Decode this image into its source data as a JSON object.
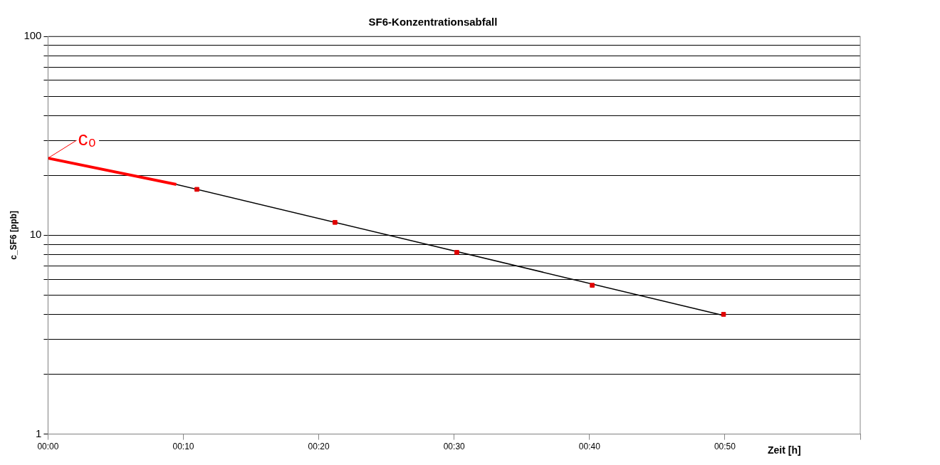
{
  "chart_data": {
    "type": "scatter",
    "title": "SF6-Konzentrationsabfall",
    "xlabel": "Zeit [h]",
    "ylabel": "c_SF6 [ppb]",
    "series": [
      {
        "type": "scatter",
        "color": "#e00000",
        "marker": "square",
        "x": [
          0.1833,
          0.3533,
          0.5033,
          0.67,
          0.8317
        ],
        "values": [
          17,
          11.6,
          8.2,
          5.6,
          4.0
        ]
      },
      {
        "type": "line",
        "color": "#000000",
        "marker": "none",
        "line_style": "solid",
        "x": [
          0.158,
          0.8317
        ],
        "values": [
          18,
          3.95
        ]
      },
      {
        "type": "line",
        "color": "#ff0000",
        "marker": "none",
        "line_style": "solid",
        "x": [
          0,
          0.158
        ],
        "values": [
          24.4,
          18
        ]
      }
    ],
    "annotations": [
      {
        "text": "c₀",
        "x": 0,
        "y": 24.4
      }
    ],
    "log": "y",
    "grid": "y",
    "xlim": [
      0,
      1
    ],
    "xticks": [
      {
        "value": 0,
        "label": "00:00"
      },
      {
        "value": 0.16667,
        "label": "00:10"
      },
      {
        "value": 0.33333,
        "label": "00:20"
      },
      {
        "value": 0.5,
        "label": "00:30"
      },
      {
        "value": 0.66667,
        "label": "00:40"
      },
      {
        "value": 0.83333,
        "label": "00:50"
      },
      {
        "value": 1,
        "label": null
      }
    ],
    "ylim": [
      1,
      100
    ],
    "yticks": [
      1,
      {
        "value": 2,
        "label": null
      },
      {
        "value": 3,
        "label": null
      },
      {
        "value": 4,
        "label": null
      },
      {
        "value": 5,
        "label": null
      },
      {
        "value": 6,
        "label": null
      },
      {
        "value": 7,
        "label": null
      },
      {
        "value": 8,
        "label": null
      },
      {
        "value": 9,
        "label": null
      },
      10,
      {
        "value": 20,
        "label": null
      },
      {
        "value": 30,
        "label": null
      },
      {
        "value": 40,
        "label": null
      },
      {
        "value": 50,
        "label": null
      },
      {
        "value": 60,
        "label": null
      },
      {
        "value": 70,
        "label": null
      },
      {
        "value": 80,
        "label": null
      },
      {
        "value": 90,
        "label": null
      },
      100
    ]
  }
}
